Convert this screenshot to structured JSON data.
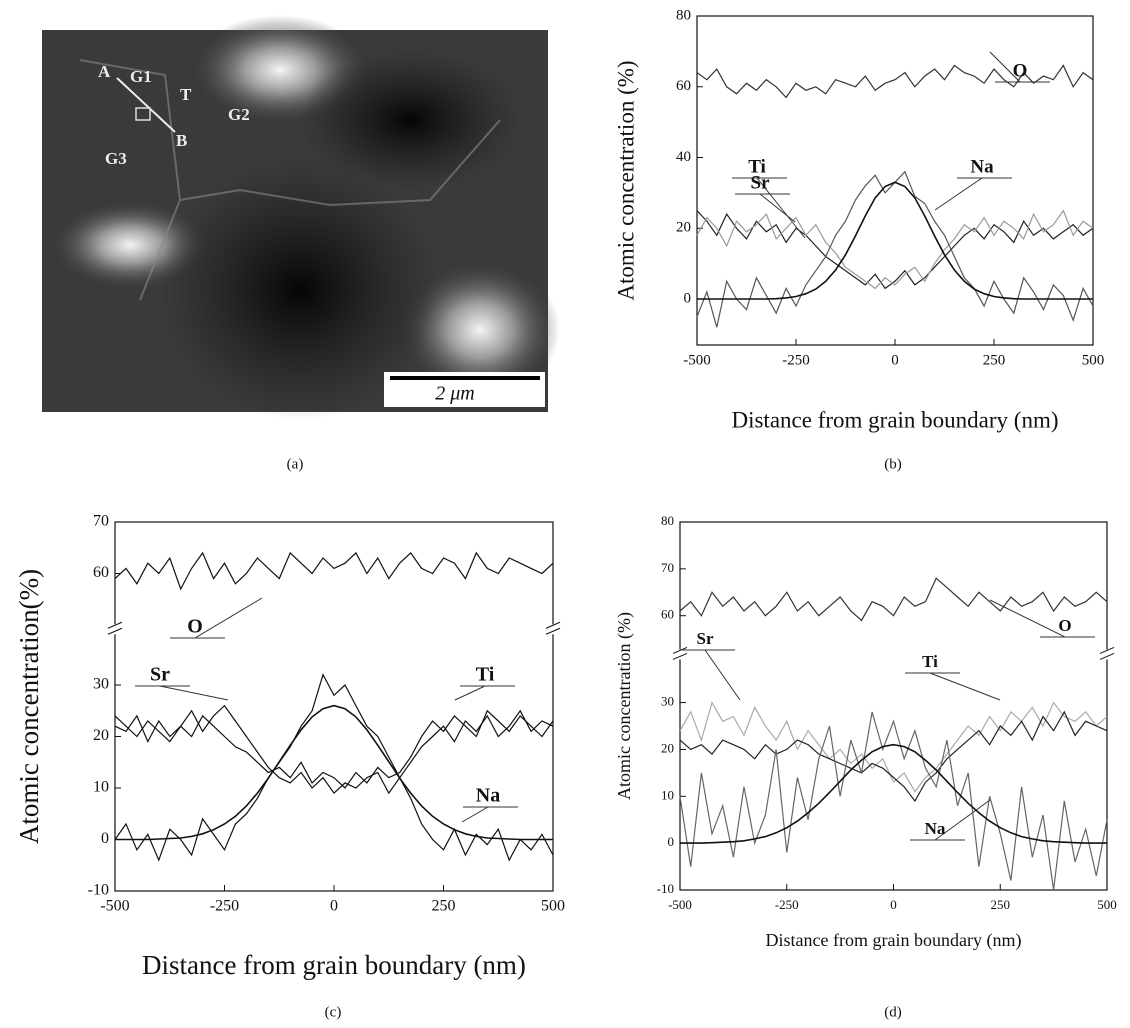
{
  "image_panel": {
    "labels": [
      "A",
      "G1",
      "T",
      "G2",
      "B",
      "G3"
    ],
    "scale_bar": "2 μm",
    "caption": "(a)"
  },
  "chart_data": [
    {
      "type": "line",
      "caption": "(b)",
      "xlabel": "Distance from grain boundary (nm)",
      "ylabel": "Atomic concentration (%)",
      "xlim": [
        -500,
        500
      ],
      "xticks": [
        -500,
        -250,
        0,
        250,
        500
      ],
      "ylim": [
        -13,
        80
      ],
      "yticks": [
        0,
        20,
        40,
        60,
        80
      ],
      "x": [
        -500,
        -475,
        -450,
        -425,
        -400,
        -375,
        -350,
        -325,
        -300,
        -275,
        -250,
        -225,
        -200,
        -175,
        -150,
        -125,
        -100,
        -75,
        -50,
        -25,
        0,
        25,
        50,
        75,
        100,
        125,
        150,
        175,
        200,
        225,
        250,
        275,
        300,
        325,
        350,
        375,
        400,
        425,
        450,
        475,
        500
      ],
      "series": [
        {
          "name": "O",
          "color": "#333333",
          "values": [
            64,
            62,
            65,
            60,
            58,
            61,
            59,
            62,
            60,
            57,
            61,
            59,
            60,
            58,
            62,
            61,
            60,
            63,
            59,
            61,
            62,
            64,
            60,
            63,
            65,
            62,
            66,
            64,
            63,
            61,
            65,
            62,
            60,
            64,
            61,
            63,
            62,
            66,
            60,
            64,
            62
          ]
        },
        {
          "name": "Ti",
          "color": "#222222",
          "values": [
            25,
            22,
            18,
            24,
            20,
            17,
            22,
            19,
            21,
            16,
            20,
            18,
            15,
            12,
            10,
            8,
            6,
            4,
            7,
            3,
            5,
            8,
            4,
            6,
            9,
            12,
            15,
            18,
            20,
            17,
            21,
            19,
            16,
            22,
            18,
            20,
            17,
            19,
            21,
            18,
            20
          ]
        },
        {
          "name": "Sr",
          "color": "#999999",
          "values": [
            18,
            23,
            20,
            15,
            22,
            19,
            21,
            24,
            17,
            20,
            23,
            18,
            21,
            16,
            13,
            9,
            7,
            5,
            3,
            6,
            4,
            7,
            9,
            5,
            10,
            14,
            17,
            21,
            19,
            23,
            18,
            22,
            20,
            17,
            24,
            19,
            21,
            25,
            18,
            22,
            20
          ]
        },
        {
          "name": "Na",
          "color": "#555555",
          "values": [
            -5,
            2,
            -8,
            5,
            0,
            -3,
            6,
            1,
            -4,
            3,
            -2,
            4,
            8,
            12,
            18,
            22,
            28,
            32,
            35,
            30,
            33,
            36,
            29,
            27,
            22,
            18,
            12,
            6,
            3,
            -2,
            5,
            0,
            -4,
            6,
            2,
            -3,
            4,
            1,
            -6,
            3,
            -2
          ]
        },
        {
          "color": "#111111",
          "values": [
            0,
            0,
            0,
            0,
            0,
            0,
            0,
            0,
            0.1,
            0.3,
            0.7,
            1.5,
            2.8,
            5.0,
            8.2,
            12.5,
            17.8,
            23.5,
            28.6,
            31.8,
            33,
            31.8,
            28.6,
            23.5,
            17.8,
            12.5,
            8.2,
            5.0,
            2.8,
            1.5,
            0.7,
            0.3,
            0.1,
            0,
            0,
            0,
            0,
            0,
            0,
            0,
            0
          ]
        }
      ]
    },
    {
      "type": "line",
      "caption": "(c)",
      "xlabel": "Distance from grain boundary (nm)",
      "ylabel": "Atomic concentration(%)",
      "xlim": [
        -500,
        500
      ],
      "xticks": [
        -500,
        -250,
        0,
        250,
        500
      ],
      "ylim": [
        -10,
        70
      ],
      "ybreak": [
        35,
        55
      ],
      "yticks": [
        -10,
        0,
        10,
        20,
        30,
        60,
        70
      ],
      "x": [
        -500,
        -475,
        -450,
        -425,
        -400,
        -375,
        -350,
        -325,
        -300,
        -275,
        -250,
        -225,
        -200,
        -175,
        -150,
        -125,
        -100,
        -75,
        -50,
        -25,
        0,
        25,
        50,
        75,
        100,
        125,
        150,
        175,
        200,
        225,
        250,
        275,
        300,
        325,
        350,
        375,
        400,
        425,
        450,
        475,
        500
      ],
      "series": [
        {
          "name": "O",
          "color": "#111111",
          "values": [
            59,
            61,
            58,
            62,
            60,
            63,
            57,
            61,
            64,
            59,
            62,
            58,
            60,
            63,
            61,
            59,
            64,
            62,
            60,
            63,
            61,
            62,
            64,
            60,
            63,
            59,
            62,
            64,
            61,
            60,
            63,
            62,
            59,
            64,
            61,
            60,
            63,
            62,
            61,
            60,
            62
          ]
        },
        {
          "name": "Sr",
          "color": "#111111",
          "values": [
            22,
            21,
            24,
            19,
            23,
            20,
            22,
            25,
            21,
            24,
            26,
            23,
            20,
            17,
            14,
            12,
            11,
            13,
            10,
            12,
            9,
            11,
            10,
            12,
            13,
            9,
            12,
            15,
            18,
            20,
            22,
            19,
            23,
            21,
            24,
            20,
            22,
            25,
            21,
            23,
            22
          ]
        },
        {
          "name": "Ti",
          "color": "#111111",
          "values": [
            24,
            22,
            20,
            23,
            21,
            19,
            22,
            20,
            24,
            22,
            20,
            18,
            17,
            15,
            13,
            14,
            12,
            15,
            11,
            13,
            12,
            10,
            13,
            11,
            14,
            12,
            13,
            16,
            20,
            23,
            21,
            24,
            22,
            20,
            25,
            23,
            21,
            24,
            22,
            20,
            23
          ]
        },
        {
          "name": "Na",
          "color": "#111111",
          "values": [
            0,
            3,
            -2,
            1,
            -4,
            2,
            0,
            -3,
            4,
            1,
            -2,
            3,
            5,
            8,
            12,
            15,
            18,
            22,
            25,
            32,
            28,
            30,
            26,
            22,
            20,
            16,
            12,
            8,
            3,
            0,
            -2,
            2,
            -3,
            1,
            -1,
            2,
            -4,
            0,
            -2,
            1,
            -3
          ]
        },
        {
          "color": "#111111",
          "values": [
            0,
            0,
            0,
            0,
            0.1,
            0.2,
            0.3,
            0.6,
            1.1,
            1.9,
            3.0,
            4.5,
            6.5,
            9.0,
            11.9,
            15.1,
            18.3,
            21.3,
            23.8,
            25.4,
            26,
            25.4,
            23.8,
            21.3,
            18.3,
            15.1,
            11.9,
            9.0,
            6.5,
            4.5,
            3.0,
            1.9,
            1.1,
            0.6,
            0.3,
            0.2,
            0.1,
            0,
            0,
            0,
            0
          ]
        }
      ]
    },
    {
      "type": "line",
      "caption": "(d)",
      "xlabel": "Distance from grain boundary (nm)",
      "ylabel": "Atomic concentration (%)",
      "xlim": [
        -500,
        500
      ],
      "xticks": [
        -500,
        -250,
        0,
        250,
        500
      ],
      "ylim": [
        -10,
        80
      ],
      "ybreak": [
        36,
        56
      ],
      "yticks": [
        -10,
        0,
        10,
        20,
        30,
        60,
        70,
        80
      ],
      "x": [
        -500,
        -475,
        -450,
        -425,
        -400,
        -375,
        -350,
        -325,
        -300,
        -275,
        -250,
        -225,
        -200,
        -175,
        -150,
        -125,
        -100,
        -75,
        -50,
        -25,
        0,
        25,
        50,
        75,
        100,
        125,
        150,
        175,
        200,
        225,
        250,
        275,
        300,
        325,
        350,
        375,
        400,
        425,
        450,
        475,
        500
      ],
      "series": [
        {
          "name": "O",
          "color": "#333333",
          "values": [
            61,
            63,
            60,
            65,
            62,
            64,
            61,
            63,
            60,
            62,
            65,
            61,
            63,
            60,
            62,
            64,
            61,
            59,
            63,
            62,
            60,
            64,
            62,
            63,
            68,
            66,
            64,
            62,
            65,
            63,
            61,
            64,
            62,
            63,
            65,
            61,
            64,
            62,
            63,
            65,
            63
          ]
        },
        {
          "name": "Sr",
          "color": "#aaaaaa",
          "values": [
            24,
            28,
            22,
            30,
            26,
            27,
            23,
            29,
            25,
            22,
            26,
            20,
            24,
            21,
            18,
            20,
            17,
            19,
            16,
            18,
            13,
            15,
            11,
            14,
            16,
            19,
            22,
            25,
            23,
            27,
            24,
            28,
            26,
            29,
            25,
            30,
            27,
            26,
            28,
            25,
            27
          ]
        },
        {
          "name": "Ti",
          "color": "#222222",
          "values": [
            22,
            20,
            21,
            19,
            22,
            21,
            20,
            18,
            21,
            19,
            20,
            22,
            21,
            19,
            18,
            17,
            16,
            15,
            17,
            16,
            14,
            12,
            9,
            13,
            15,
            18,
            20,
            22,
            24,
            21,
            25,
            23,
            26,
            22,
            27,
            24,
            28,
            23,
            26,
            25,
            24
          ]
        },
        {
          "name": "Na",
          "color": "#666666",
          "values": [
            10,
            -5,
            15,
            2,
            8,
            -3,
            12,
            0,
            6,
            20,
            -2,
            14,
            5,
            18,
            25,
            10,
            22,
            15,
            28,
            20,
            26,
            18,
            24,
            16,
            12,
            22,
            8,
            15,
            -5,
            10,
            2,
            -8,
            12,
            -3,
            6,
            -10,
            9,
            -4,
            3,
            -7,
            5
          ]
        },
        {
          "color": "#111111",
          "values": [
            0,
            0,
            0,
            0.1,
            0.2,
            0.3,
            0.5,
            0.9,
            1.4,
            2.2,
            3.3,
            4.7,
            6.5,
            8.5,
            10.8,
            13.2,
            15.6,
            17.7,
            19.5,
            20.6,
            21,
            20.6,
            19.5,
            17.7,
            15.6,
            13.2,
            10.8,
            8.5,
            6.5,
            4.7,
            3.3,
            2.2,
            1.4,
            0.9,
            0.5,
            0.3,
            0.2,
            0.1,
            0,
            0,
            0
          ]
        }
      ]
    }
  ]
}
